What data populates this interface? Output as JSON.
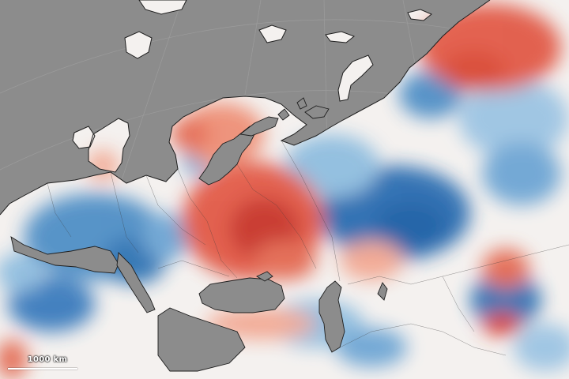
{
  "map": {
    "scale_bar_label": "1000 km",
    "colors": {
      "ocean": "#8c8c8c",
      "land_neutral": "#f4f1ef",
      "warm_anomaly": "#d73027",
      "cool_anomaly": "#2166ac",
      "coastline": "#1e1e1e"
    }
  }
}
